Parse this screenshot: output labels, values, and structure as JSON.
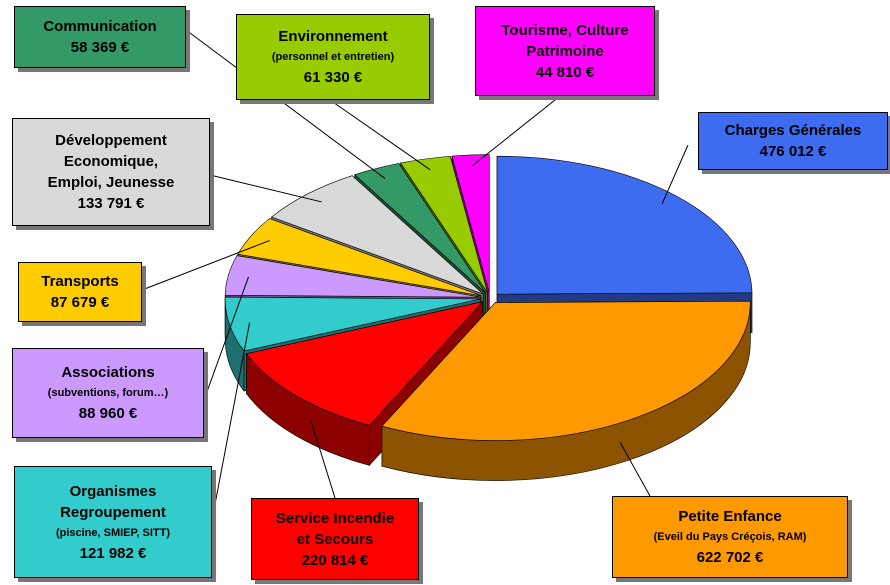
{
  "chart_data": {
    "type": "pie3d",
    "categories": [
      "Charges Générales",
      "Petite Enfance",
      "Service Incendie\net Secours",
      "Organismes\nRegroupement",
      "Associations",
      "Transports",
      "Développement\nEconomique,\nEmploi,  Jeunesse",
      "Communication",
      "Environnement",
      "Tourisme, Culture\nPatrimoine"
    ],
    "category_notes": [
      null,
      "(Eveil du Pays Créçois, RAM)",
      null,
      "(piscine, SMIEP, SITT)",
      "(subventions, forum…)",
      null,
      null,
      null,
      "(personnel et entretien)",
      null
    ],
    "values": [
      476012,
      622702,
      220814,
      121982,
      88960,
      87679,
      133791,
      58369,
      61330,
      44810
    ],
    "value_labels": [
      "476 012 €",
      "622 702 €",
      "220 814 €",
      "121 982 €",
      "88 960 €",
      "87 679 €",
      "133 791 €",
      "58 369 €",
      "61 330 €",
      "44 810 €"
    ],
    "colors": [
      "#3d6cf0",
      "#ff9900",
      "#ff0000",
      "#33cccc",
      "#cc99ff",
      "#ffcc00",
      "#d9d9d9",
      "#339966",
      "#99cc00",
      "#ff00ff"
    ]
  }
}
